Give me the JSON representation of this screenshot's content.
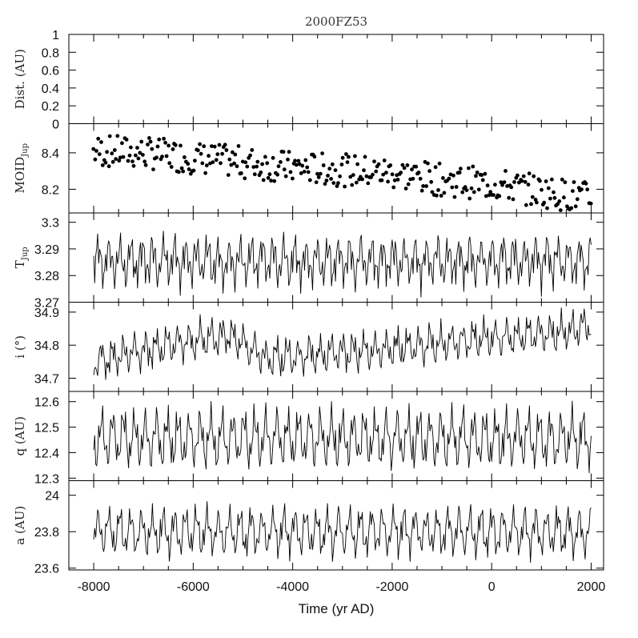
{
  "chart_data": {
    "type": "line",
    "title": "2000FZ53",
    "xlabel": "Time (yr AD)",
    "xlim": [
      -8500,
      2250
    ],
    "x_ticks": [
      -8000,
      -6000,
      -4000,
      -2000,
      0,
      2000
    ],
    "x_ticklabels": [
      "-8000",
      "-6000",
      "-4000",
      "-2000",
      "0",
      "2000"
    ],
    "panels": [
      {
        "key": "dist",
        "ylabel": "Dist. (AU)",
        "ylim": [
          0,
          1
        ],
        "y_ticks": [
          0,
          0.2,
          0.4,
          0.6,
          0.8,
          1
        ],
        "y_ticklabels": [
          "0",
          "0.2",
          "0.4",
          "0.6",
          "0.8",
          "1"
        ],
        "style": "empty",
        "series": []
      },
      {
        "key": "moid",
        "ylabel": "MOID",
        "ylabel_sub": "Jup",
        "ylim": [
          8.07,
          8.56
        ],
        "y_ticks": [
          8.2,
          8.4
        ],
        "y_ticklabels": [
          "8.2",
          "8.4"
        ],
        "style": "scatter",
        "series": [
          {
            "trend": [
              [
                -8000,
                8.41
              ],
              [
                -7000,
                8.4
              ],
              [
                -5500,
                8.36
              ],
              [
                -4000,
                8.32
              ],
              [
                -2000,
                8.29
              ],
              [
                -1000,
                8.25
              ],
              [
                0,
                8.23
              ],
              [
                1000,
                8.19
              ],
              [
                2000,
                8.15
              ]
            ],
            "spread": 0.09,
            "seed": 7
          }
        ]
      },
      {
        "key": "tjup",
        "ylabel": "T",
        "ylabel_sub": "Jup",
        "ylim": [
          3.27,
          3.3035
        ],
        "y_ticks": [
          3.27,
          3.28,
          3.29,
          3.3
        ],
        "y_ticklabels": [
          "3.27",
          "3.28",
          "3.29",
          "3.3"
        ],
        "style": "line",
        "series": [
          {
            "mean": 3.2855,
            "amp": [
              0.0055,
              0.0045,
              0.0025
            ],
            "seed": 3
          }
        ]
      },
      {
        "key": "incl",
        "ylabel": "i (°)",
        "ylim": [
          34.66,
          34.93
        ],
        "y_ticks": [
          34.7,
          34.8,
          34.9
        ],
        "y_ticklabels": [
          "34.7",
          "34.8",
          "34.9"
        ],
        "style": "line",
        "series": [
          {
            "trend": [
              [
                -8000,
                34.75
              ],
              [
                -6500,
                34.8
              ],
              [
                -5300,
                34.83
              ],
              [
                -4500,
                34.76
              ],
              [
                -2000,
                34.79
              ],
              [
                0,
                34.82
              ],
              [
                1500,
                34.84
              ],
              [
                2000,
                34.86
              ]
            ],
            "amp": [
              0.035,
              0.025,
              0.015
            ],
            "seed": 11
          }
        ]
      },
      {
        "key": "q",
        "ylabel": "q (AU)",
        "ylim": [
          12.29,
          12.64
        ],
        "y_ticks": [
          12.3,
          12.4,
          12.5,
          12.6
        ],
        "y_ticklabels": [
          "12.3",
          "12.4",
          "12.5",
          "12.6"
        ],
        "style": "line",
        "series": [
          {
            "mean": 12.455,
            "amp": [
              0.075,
              0.045,
              0.025
            ],
            "seed": 5
          }
        ]
      },
      {
        "key": "a",
        "ylabel": "a (AU)",
        "ylim": [
          23.59,
          24.08
        ],
        "y_ticks": [
          23.6,
          23.8,
          24
        ],
        "y_ticklabels": [
          "23.6",
          "23.8",
          "24"
        ],
        "style": "line",
        "series": [
          {
            "mean": 23.8,
            "amp": [
              0.09,
              0.05,
              0.03
            ],
            "seed": 9
          }
        ]
      }
    ]
  }
}
